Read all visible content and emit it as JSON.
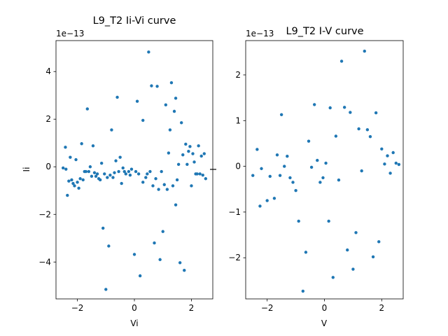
{
  "chart_data": [
    {
      "type": "scatter",
      "title": "L9_T2 Ii-Vi curve",
      "xlabel": "Vi",
      "ylabel": "Ii",
      "y_offset_label": "1e−13",
      "xlim": [
        -2.75,
        2.75
      ],
      "ylim": [
        -5.55,
        5.3
      ],
      "xticks": [
        -2,
        0,
        2
      ],
      "xtick_labels": [
        "−2",
        "0",
        "2"
      ],
      "yticks": [
        -4,
        -2,
        0,
        2,
        4
      ],
      "ytick_labels": [
        "−4",
        "−2",
        "0",
        "2",
        "4"
      ],
      "color": "#1f77b4",
      "points": [
        [
          -2.5,
          -0.05
        ],
        [
          -2.42,
          0.82
        ],
        [
          -2.4,
          -0.1
        ],
        [
          -2.35,
          -1.2
        ],
        [
          -2.3,
          -0.6
        ],
        [
          -2.25,
          0.4
        ],
        [
          -2.2,
          -0.55
        ],
        [
          -2.15,
          -0.7
        ],
        [
          -2.1,
          -0.8
        ],
        [
          -2.05,
          0.3
        ],
        [
          -2.0,
          -0.65
        ],
        [
          -1.95,
          -0.9
        ],
        [
          -1.9,
          -0.5
        ],
        [
          -1.85,
          0.97
        ],
        [
          -1.8,
          -0.55
        ],
        [
          -1.75,
          -0.2
        ],
        [
          -1.7,
          -0.2
        ],
        [
          -1.65,
          2.43
        ],
        [
          -1.6,
          -0.2
        ],
        [
          -1.55,
          0.0
        ],
        [
          -1.5,
          -0.4
        ],
        [
          -1.45,
          0.88
        ],
        [
          -1.4,
          -0.25
        ],
        [
          -1.35,
          -0.4
        ],
        [
          -1.3,
          -0.3
        ],
        [
          -1.25,
          -0.5
        ],
        [
          -1.2,
          -0.55
        ],
        [
          -1.15,
          0.15
        ],
        [
          -1.1,
          -2.58
        ],
        [
          -1.05,
          -0.3
        ],
        [
          -1.0,
          -5.15
        ],
        [
          -0.95,
          -0.45
        ],
        [
          -0.9,
          -3.33
        ],
        [
          -0.85,
          -0.35
        ],
        [
          -0.8,
          1.55
        ],
        [
          -0.75,
          -0.45
        ],
        [
          -0.7,
          -0.25
        ],
        [
          -0.65,
          0.25
        ],
        [
          -0.6,
          2.92
        ],
        [
          -0.55,
          -0.2
        ],
        [
          -0.5,
          0.4
        ],
        [
          -0.45,
          -0.7
        ],
        [
          -0.4,
          -0.05
        ],
        [
          -0.35,
          -0.2
        ],
        [
          -0.3,
          -0.3
        ],
        [
          -0.2,
          -0.2
        ],
        [
          -0.15,
          -0.35
        ],
        [
          -0.1,
          -0.1
        ],
        [
          0.0,
          -3.68
        ],
        [
          0.05,
          -0.2
        ],
        [
          0.1,
          2.75
        ],
        [
          0.15,
          -0.3
        ],
        [
          0.2,
          -4.58
        ],
        [
          0.3,
          1.95
        ],
        [
          0.3,
          -0.65
        ],
        [
          0.4,
          -0.45
        ],
        [
          0.45,
          -0.3
        ],
        [
          0.5,
          4.82
        ],
        [
          0.55,
          -0.2
        ],
        [
          0.6,
          3.4
        ],
        [
          0.65,
          -0.8
        ],
        [
          0.7,
          -3.2
        ],
        [
          0.75,
          -0.5
        ],
        [
          0.8,
          3.38
        ],
        [
          0.85,
          -0.95
        ],
        [
          0.9,
          -3.9
        ],
        [
          0.95,
          -0.2
        ],
        [
          1.0,
          -2.72
        ],
        [
          1.05,
          -0.75
        ],
        [
          1.1,
          2.6
        ],
        [
          1.15,
          -0.95
        ],
        [
          1.2,
          0.58
        ],
        [
          1.25,
          1.55
        ],
        [
          1.3,
          3.53
        ],
        [
          1.35,
          -0.8
        ],
        [
          1.4,
          2.33
        ],
        [
          1.45,
          2.88
        ],
        [
          1.45,
          -1.6
        ],
        [
          1.5,
          -0.55
        ],
        [
          1.55,
          0.1
        ],
        [
          1.6,
          -4.03
        ],
        [
          1.65,
          1.85
        ],
        [
          1.7,
          0.5
        ],
        [
          1.75,
          -4.35
        ],
        [
          1.8,
          0.95
        ],
        [
          1.85,
          0.1
        ],
        [
          1.9,
          0.65
        ],
        [
          1.95,
          0.85
        ],
        [
          2.0,
          -0.8
        ],
        [
          2.05,
          0.55
        ],
        [
          2.1,
          0.2
        ],
        [
          2.15,
          -0.3
        ],
        [
          2.2,
          -0.3
        ],
        [
          2.25,
          0.88
        ],
        [
          2.3,
          -0.3
        ],
        [
          2.35,
          0.45
        ],
        [
          2.4,
          -0.35
        ],
        [
          2.45,
          0.55
        ],
        [
          2.5,
          -0.5
        ]
      ]
    },
    {
      "type": "scatter",
      "title": "L9_T2 I-V curve",
      "xlabel": "V",
      "ylabel": "I",
      "y_offset_label": "1e−13",
      "xlim": [
        -2.75,
        2.75
      ],
      "ylim": [
        -2.9,
        2.75
      ],
      "xticks": [
        -2,
        0,
        2
      ],
      "xtick_labels": [
        "−2",
        "0",
        "2"
      ],
      "yticks": [
        -2,
        -1,
        0,
        1,
        2
      ],
      "ytick_labels": [
        "−2",
        "−1",
        "0",
        "1",
        "2"
      ],
      "color": "#1f77b4",
      "points": [
        [
          -2.5,
          -0.2
        ],
        [
          -2.35,
          0.37
        ],
        [
          -2.25,
          -0.87
        ],
        [
          -2.2,
          -0.05
        ],
        [
          -2.0,
          -0.75
        ],
        [
          -1.9,
          -0.22
        ],
        [
          -1.75,
          -0.7
        ],
        [
          -1.65,
          0.25
        ],
        [
          -1.55,
          -0.2
        ],
        [
          -1.5,
          1.13
        ],
        [
          -1.4,
          0.0
        ],
        [
          -1.3,
          0.22
        ],
        [
          -1.2,
          -0.25
        ],
        [
          -1.1,
          -0.35
        ],
        [
          -1.0,
          -0.53
        ],
        [
          -0.9,
          -1.2
        ],
        [
          -0.75,
          -2.73
        ],
        [
          -0.65,
          -1.88
        ],
        [
          -0.55,
          0.55
        ],
        [
          -0.45,
          -0.02
        ],
        [
          -0.35,
          1.35
        ],
        [
          -0.25,
          0.13
        ],
        [
          -0.15,
          -0.35
        ],
        [
          -0.05,
          -0.25
        ],
        [
          0.05,
          0.07
        ],
        [
          0.15,
          -1.2
        ],
        [
          0.2,
          1.28
        ],
        [
          0.3,
          -2.43
        ],
        [
          0.4,
          0.66
        ],
        [
          0.5,
          -0.3
        ],
        [
          0.6,
          2.3
        ],
        [
          0.7,
          1.29
        ],
        [
          0.8,
          -1.83
        ],
        [
          0.9,
          1.18
        ],
        [
          1.0,
          -2.25
        ],
        [
          1.1,
          -1.45
        ],
        [
          1.2,
          0.82
        ],
        [
          1.3,
          -0.1
        ],
        [
          1.4,
          2.52
        ],
        [
          1.5,
          0.8
        ],
        [
          1.6,
          0.65
        ],
        [
          1.7,
          -1.98
        ],
        [
          1.8,
          1.17
        ],
        [
          1.9,
          -1.65
        ],
        [
          2.0,
          0.38
        ],
        [
          2.1,
          0.05
        ],
        [
          2.2,
          0.23
        ],
        [
          2.3,
          -0.15
        ],
        [
          2.4,
          0.3
        ],
        [
          2.5,
          0.07
        ],
        [
          2.6,
          0.04
        ]
      ]
    }
  ]
}
